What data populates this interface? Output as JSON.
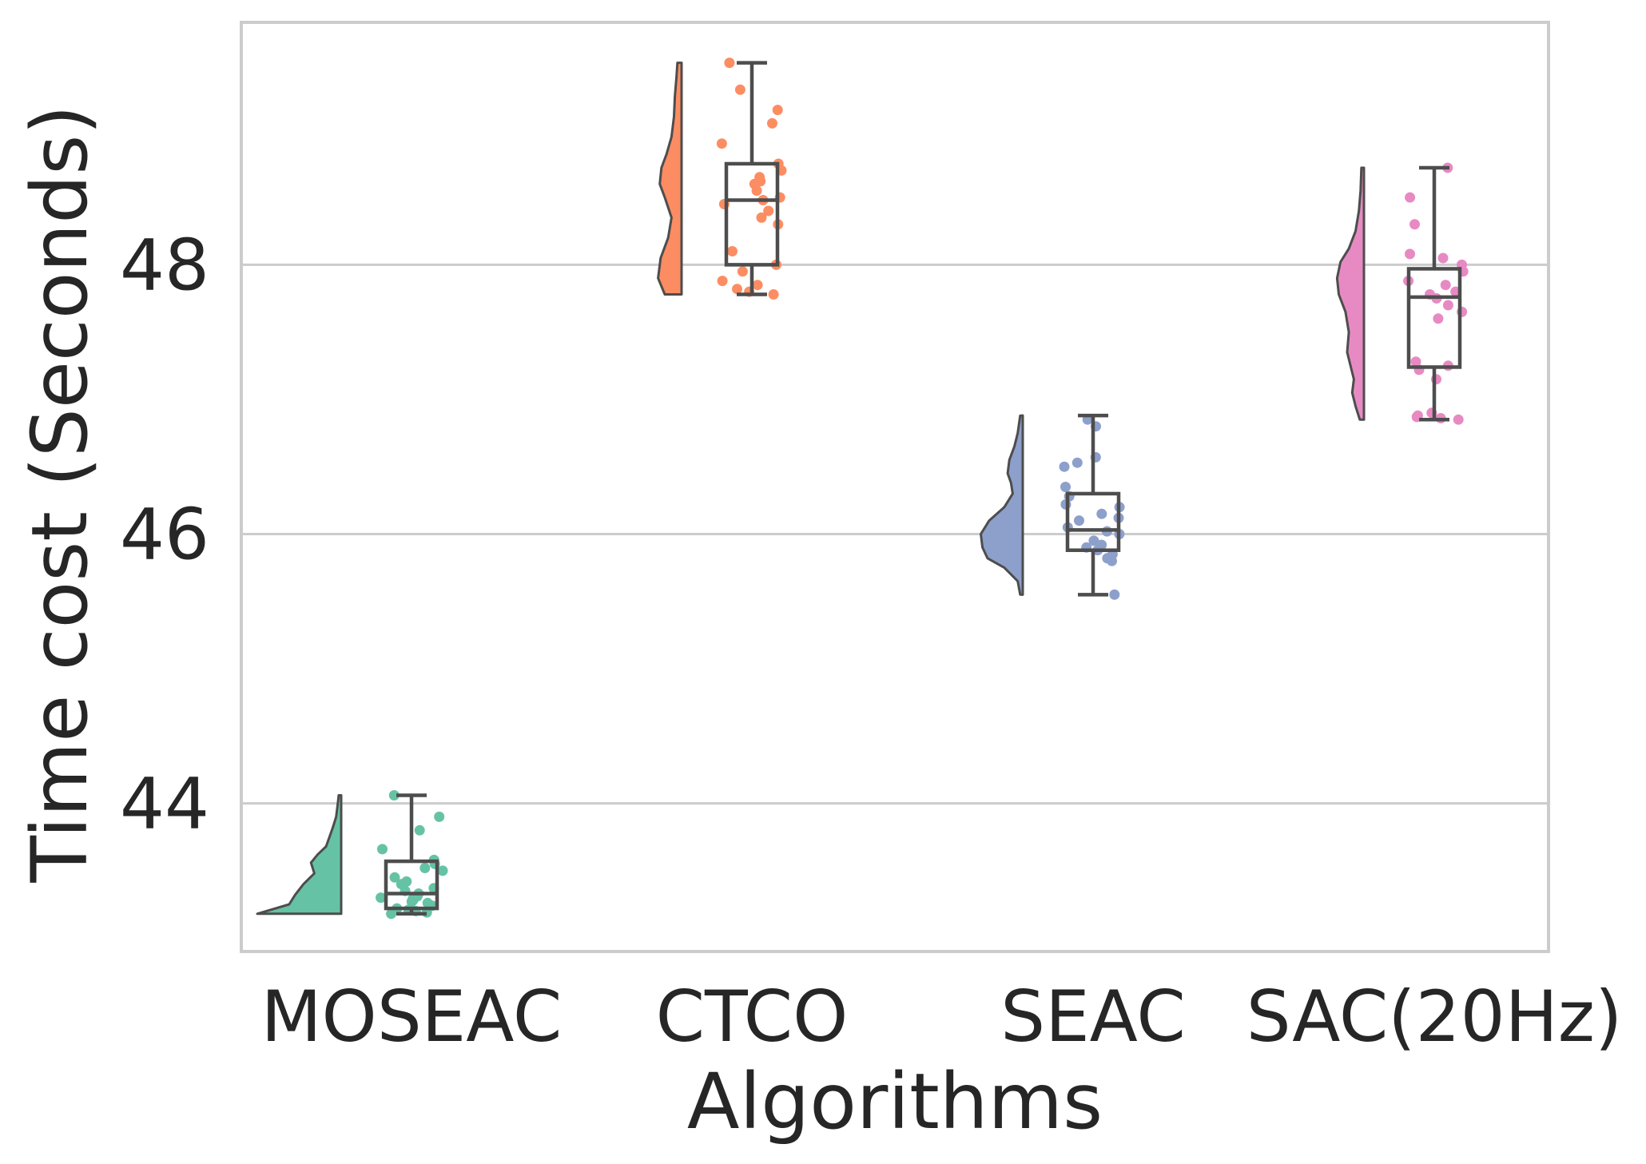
{
  "chart_data": {
    "type": "raincloud",
    "title": "",
    "xlabel": "Algorithms",
    "ylabel": "Time cost (Seconds)",
    "ylim": [
      42.9,
      49.8
    ],
    "yticks": [
      44,
      46,
      48
    ],
    "grid": "horizontal",
    "legend": "none",
    "categories": [
      "MOSEAC",
      "CTCO",
      "SEAC",
      "SAC(20Hz)"
    ],
    "series": [
      {
        "category": "MOSEAC",
        "color": "#66c2a5",
        "box": {
          "min": 43.18,
          "q1": 43.22,
          "median": 43.33,
          "q3": 43.57,
          "max": 44.06
        },
        "density": [
          [
            43.18,
            1.0
          ],
          [
            43.25,
            0.62
          ],
          [
            43.32,
            0.55
          ],
          [
            43.4,
            0.45
          ],
          [
            43.48,
            0.32
          ],
          [
            43.56,
            0.36
          ],
          [
            43.62,
            0.28
          ],
          [
            43.68,
            0.18
          ],
          [
            43.75,
            0.14
          ],
          [
            43.82,
            0.1
          ],
          [
            43.9,
            0.06
          ],
          [
            44.0,
            0.04
          ],
          [
            44.06,
            0.03
          ]
        ],
        "points": [
          43.18,
          43.19,
          43.2,
          43.21,
          43.22,
          43.24,
          43.26,
          43.27,
          43.28,
          43.29,
          43.3,
          43.31,
          43.33,
          43.35,
          43.37,
          43.4,
          43.42,
          43.45,
          43.5,
          43.52,
          43.55,
          43.58,
          43.66,
          43.8,
          43.9,
          44.06
        ]
      },
      {
        "category": "CTCO",
        "color": "#fc8d62",
        "box": {
          "min": 47.78,
          "q1": 48.0,
          "median": 48.48,
          "q3": 48.75,
          "max": 49.5
        },
        "density": [
          [
            47.78,
            0.2
          ],
          [
            47.9,
            0.28
          ],
          [
            48.05,
            0.25
          ],
          [
            48.2,
            0.16
          ],
          [
            48.35,
            0.12
          ],
          [
            48.5,
            0.2
          ],
          [
            48.6,
            0.26
          ],
          [
            48.72,
            0.24
          ],
          [
            48.82,
            0.18
          ],
          [
            48.95,
            0.12
          ],
          [
            49.1,
            0.09
          ],
          [
            49.25,
            0.08
          ],
          [
            49.4,
            0.06
          ],
          [
            49.5,
            0.05
          ]
        ],
        "points": [
          47.78,
          47.8,
          47.82,
          47.85,
          47.88,
          47.95,
          48.0,
          48.1,
          48.3,
          48.35,
          48.4,
          48.45,
          48.48,
          48.5,
          48.55,
          48.6,
          48.62,
          48.65,
          48.7,
          48.75,
          48.9,
          49.05,
          49.15,
          49.3,
          49.5
        ]
      },
      {
        "category": "SEAC",
        "color": "#8da0cb",
        "box": {
          "min": 45.55,
          "q1": 45.88,
          "median": 46.03,
          "q3": 46.3,
          "max": 46.88
        },
        "density": [
          [
            45.55,
            0.03
          ],
          [
            45.65,
            0.06
          ],
          [
            45.75,
            0.22
          ],
          [
            45.82,
            0.42
          ],
          [
            45.9,
            0.48
          ],
          [
            46.0,
            0.5
          ],
          [
            46.1,
            0.4
          ],
          [
            46.2,
            0.22
          ],
          [
            46.3,
            0.12
          ],
          [
            46.38,
            0.14
          ],
          [
            46.45,
            0.18
          ],
          [
            46.55,
            0.16
          ],
          [
            46.65,
            0.1
          ],
          [
            46.75,
            0.06
          ],
          [
            46.88,
            0.03
          ]
        ],
        "points": [
          45.55,
          45.8,
          45.82,
          45.85,
          45.88,
          45.9,
          45.92,
          45.95,
          46.0,
          46.02,
          46.05,
          46.1,
          46.12,
          46.15,
          46.2,
          46.22,
          46.28,
          46.35,
          46.5,
          46.53,
          46.57,
          46.8,
          46.85
        ]
      },
      {
        "category": "SAC(20Hz)",
        "color": "#e78ac3",
        "box": {
          "min": 46.85,
          "q1": 47.24,
          "median": 47.76,
          "q3": 47.97,
          "max": 48.72
        },
        "density": [
          [
            46.85,
            0.05
          ],
          [
            46.95,
            0.1
          ],
          [
            47.05,
            0.14
          ],
          [
            47.15,
            0.12
          ],
          [
            47.25,
            0.16
          ],
          [
            47.35,
            0.2
          ],
          [
            47.5,
            0.18
          ],
          [
            47.65,
            0.22
          ],
          [
            47.78,
            0.3
          ],
          [
            47.9,
            0.32
          ],
          [
            48.02,
            0.28
          ],
          [
            48.12,
            0.18
          ],
          [
            48.25,
            0.1
          ],
          [
            48.4,
            0.06
          ],
          [
            48.55,
            0.04
          ],
          [
            48.72,
            0.03
          ]
        ],
        "points": [
          46.85,
          46.86,
          46.87,
          46.88,
          46.9,
          47.15,
          47.22,
          47.25,
          47.28,
          47.6,
          47.65,
          47.7,
          47.75,
          47.78,
          47.8,
          47.85,
          47.88,
          47.95,
          48.0,
          48.05,
          48.08,
          48.3,
          48.5,
          48.72
        ]
      }
    ]
  }
}
